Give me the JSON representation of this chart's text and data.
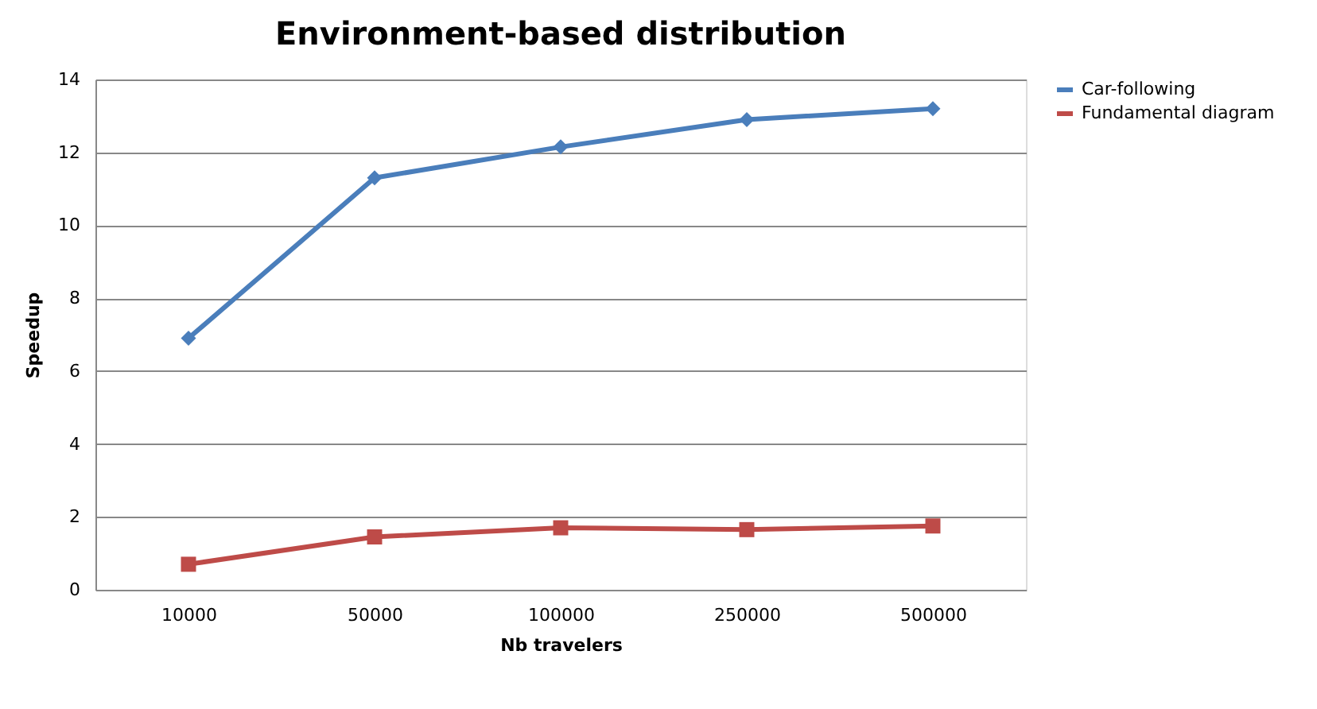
{
  "chart_data": {
    "type": "line",
    "title": "Environment-based distribution",
    "xlabel": "Nb travelers",
    "ylabel": "Speedup",
    "categories": [
      "10000",
      "50000",
      "100000",
      "250000",
      "500000"
    ],
    "series": [
      {
        "name": "Car-following",
        "color": "#4a7ebb",
        "marker": "diamond",
        "values": [
          6.9,
          11.3,
          12.15,
          12.9,
          13.2
        ]
      },
      {
        "name": "Fundamental diagram",
        "color": "#be4b48",
        "marker": "square",
        "values": [
          0.7,
          1.45,
          1.7,
          1.65,
          1.75
        ]
      }
    ],
    "ylim": [
      0,
      14
    ],
    "yticks": [
      0,
      2,
      4,
      6,
      8,
      10,
      12,
      14
    ],
    "grid": "y",
    "legend": "right",
    "line_style": "solid"
  }
}
